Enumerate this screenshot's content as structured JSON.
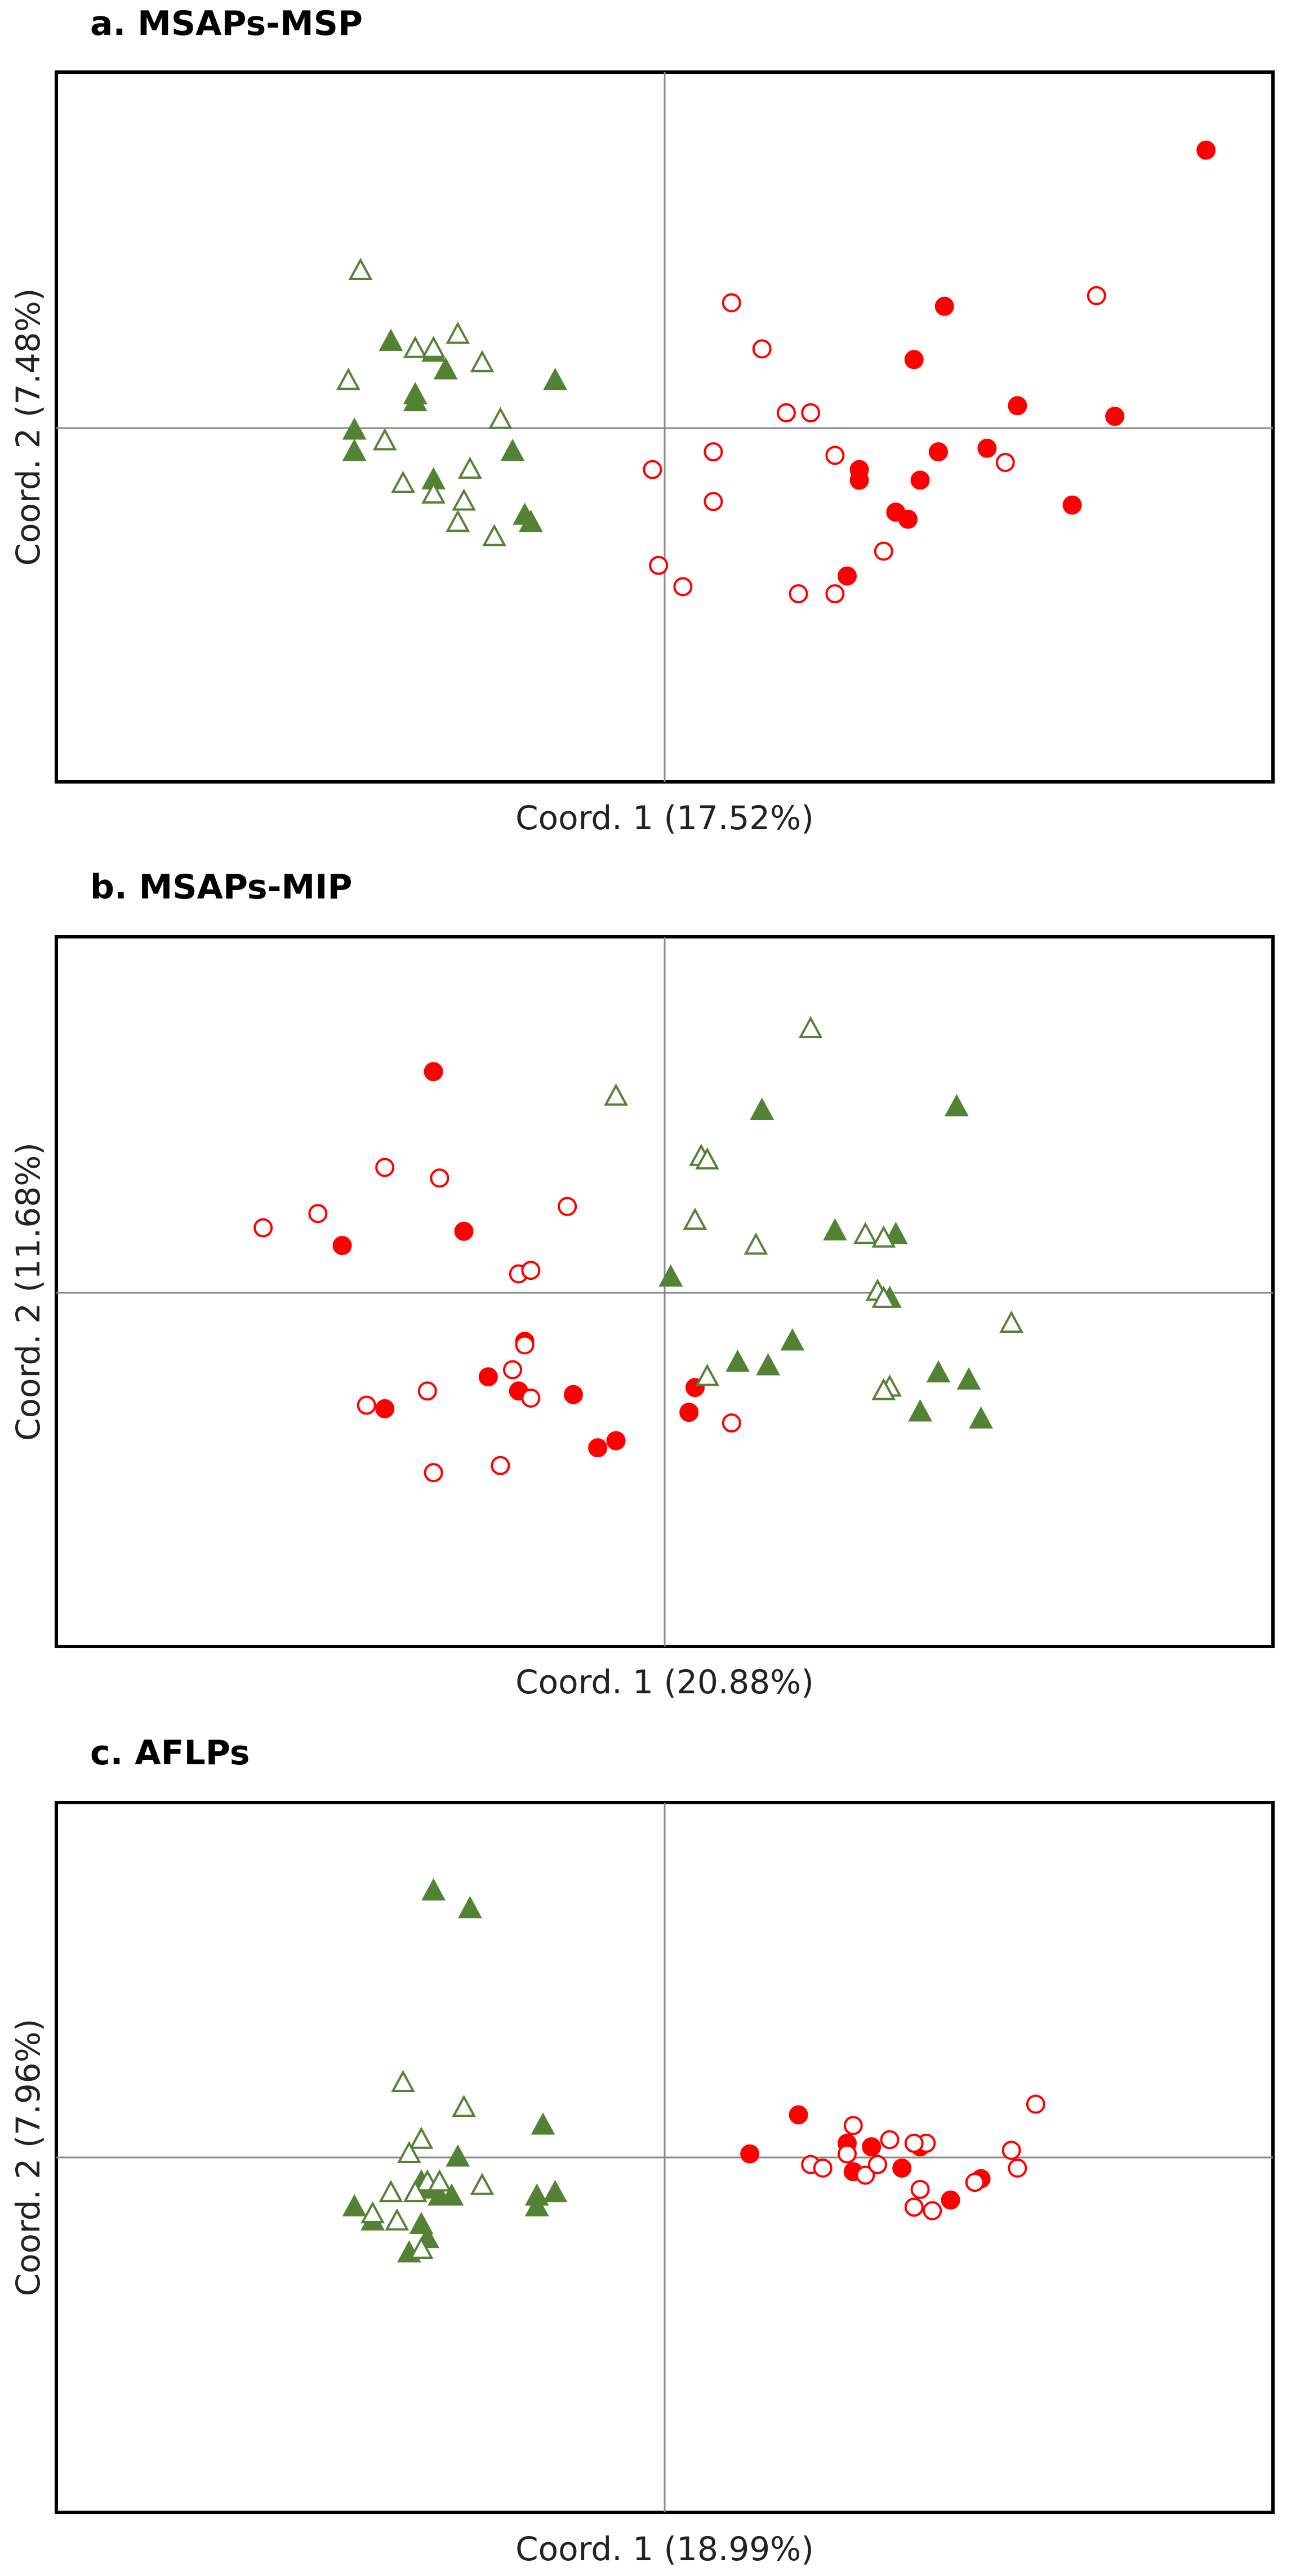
{
  "colors": {
    "group_red": "#ff0000",
    "group_green": "#548235",
    "frame": "#000000",
    "axis": "#8a8a8a"
  },
  "chart_data": [
    {
      "type": "scatter",
      "title": "a. MSAPs-MSP",
      "xlabel": "Coord. 1 (17.52%)",
      "ylabel": "Coord. 2 (7.48%)",
      "xlim": [
        -1.0,
        1.0
      ],
      "ylim": [
        -1.0,
        1.0
      ],
      "series": [
        {
          "name": "red-filled-circle",
          "marker": "circle",
          "filled": true,
          "color": "#ff0000",
          "points": [
            [
              0.89,
              0.78
            ],
            [
              0.46,
              0.34
            ],
            [
              0.41,
              0.19
            ],
            [
              0.58,
              0.06
            ],
            [
              0.53,
              -0.06
            ],
            [
              0.74,
              0.03
            ],
            [
              0.45,
              -0.07
            ],
            [
              0.32,
              -0.12
            ],
            [
              0.42,
              -0.15
            ],
            [
              0.32,
              -0.15
            ],
            [
              0.38,
              -0.24
            ],
            [
              0.67,
              -0.22
            ],
            [
              0.4,
              -0.26
            ],
            [
              0.3,
              -0.42
            ]
          ]
        },
        {
          "name": "red-open-circle",
          "marker": "circle",
          "filled": false,
          "color": "#ff0000",
          "points": [
            [
              0.71,
              0.37
            ],
            [
              0.11,
              0.35
            ],
            [
              0.16,
              0.22
            ],
            [
              0.24,
              0.04
            ],
            [
              0.2,
              0.04
            ],
            [
              0.08,
              -0.07
            ],
            [
              0.28,
              -0.08
            ],
            [
              0.56,
              -0.1
            ],
            [
              -0.02,
              -0.12
            ],
            [
              0.08,
              -0.21
            ],
            [
              0.36,
              -0.35
            ],
            [
              -0.01,
              -0.39
            ],
            [
              0.03,
              -0.45
            ],
            [
              0.28,
              -0.47
            ],
            [
              0.22,
              -0.47
            ]
          ]
        },
        {
          "name": "green-filled-triangle",
          "marker": "triangle",
          "filled": true,
          "color": "#548235",
          "points": [
            [
              -0.45,
              0.24
            ],
            [
              -0.38,
              0.21
            ],
            [
              -0.36,
              0.16
            ],
            [
              -0.18,
              0.13
            ],
            [
              -0.41,
              0.09
            ],
            [
              -0.41,
              0.07
            ],
            [
              -0.51,
              -0.01
            ],
            [
              -0.51,
              -0.07
            ],
            [
              -0.25,
              -0.07
            ],
            [
              -0.38,
              -0.15
            ],
            [
              -0.23,
              -0.25
            ],
            [
              -0.22,
              -0.27
            ]
          ]
        },
        {
          "name": "green-open-triangle",
          "marker": "triangle",
          "filled": false,
          "color": "#548235",
          "points": [
            [
              -0.5,
              0.44
            ],
            [
              -0.34,
              0.26
            ],
            [
              -0.41,
              0.22
            ],
            [
              -0.38,
              0.22
            ],
            [
              -0.3,
              0.18
            ],
            [
              -0.52,
              0.13
            ],
            [
              -0.27,
              0.02
            ],
            [
              -0.46,
              -0.04
            ],
            [
              -0.43,
              -0.16
            ],
            [
              -0.32,
              -0.12
            ],
            [
              -0.38,
              -0.19
            ],
            [
              -0.33,
              -0.21
            ],
            [
              -0.28,
              -0.31
            ],
            [
              -0.34,
              -0.27
            ]
          ]
        }
      ]
    },
    {
      "type": "scatter",
      "title": "b. MSAPs-MIP",
      "xlabel": "Coord. 1 (20.88%)",
      "ylabel": "Coord. 2 (11.68%)",
      "xlim": [
        -1.0,
        1.0
      ],
      "ylim": [
        -1.0,
        1.0
      ],
      "series": [
        {
          "name": "red-filled-circle",
          "marker": "circle",
          "filled": true,
          "color": "#ff0000",
          "points": [
            [
              -0.38,
              0.62
            ],
            [
              -0.33,
              0.17
            ],
            [
              -0.53,
              0.13
            ],
            [
              -0.46,
              -0.33
            ],
            [
              -0.29,
              -0.24
            ],
            [
              -0.23,
              -0.14
            ],
            [
              -0.24,
              -0.28
            ],
            [
              -0.15,
              -0.29
            ],
            [
              0.05,
              -0.27
            ],
            [
              0.04,
              -0.34
            ],
            [
              -0.08,
              -0.42
            ],
            [
              -0.11,
              -0.44
            ]
          ]
        },
        {
          "name": "red-open-circle",
          "marker": "circle",
          "filled": false,
          "color": "#ff0000",
          "points": [
            [
              -0.66,
              0.18
            ],
            [
              -0.57,
              0.22
            ],
            [
              -0.46,
              0.35
            ],
            [
              -0.37,
              0.32
            ],
            [
              -0.16,
              0.24
            ],
            [
              -0.23,
              -0.15
            ],
            [
              -0.49,
              -0.32
            ],
            [
              -0.39,
              -0.28
            ],
            [
              -0.25,
              -0.22
            ],
            [
              -0.22,
              -0.3
            ],
            [
              -0.24,
              0.05
            ],
            [
              -0.22,
              0.06
            ],
            [
              -0.38,
              -0.51
            ],
            [
              -0.27,
              -0.49
            ],
            [
              0.11,
              -0.37
            ]
          ]
        },
        {
          "name": "green-filled-triangle",
          "marker": "triangle",
          "filled": true,
          "color": "#548235",
          "points": [
            [
              0.48,
              0.52
            ],
            [
              0.16,
              0.51
            ],
            [
              0.28,
              0.17
            ],
            [
              0.38,
              0.16
            ],
            [
              0.01,
              0.04
            ],
            [
              0.37,
              -0.02
            ],
            [
              0.21,
              -0.14
            ],
            [
              0.12,
              -0.2
            ],
            [
              0.17,
              -0.21
            ],
            [
              0.45,
              -0.23
            ],
            [
              0.5,
              -0.25
            ],
            [
              0.42,
              -0.34
            ],
            [
              0.52,
              -0.36
            ]
          ]
        },
        {
          "name": "green-open-triangle",
          "marker": "triangle",
          "filled": false,
          "color": "#548235",
          "points": [
            [
              0.24,
              0.74
            ],
            [
              -0.08,
              0.55
            ],
            [
              0.06,
              0.38
            ],
            [
              0.07,
              0.37
            ],
            [
              0.05,
              0.2
            ],
            [
              0.15,
              0.13
            ],
            [
              0.33,
              0.16
            ],
            [
              0.36,
              0.15
            ],
            [
              0.35,
              0.0
            ],
            [
              0.36,
              -0.02
            ],
            [
              0.57,
              -0.09
            ],
            [
              0.07,
              -0.24
            ],
            [
              0.37,
              -0.27
            ],
            [
              0.36,
              -0.28
            ]
          ]
        }
      ]
    },
    {
      "type": "scatter",
      "title": "c. AFLPs",
      "xlabel": "Coord. 1 (18.99%)",
      "ylabel": "Coord. 2 (7.96%)",
      "xlim": [
        -1.0,
        1.0
      ],
      "ylim": [
        -1.0,
        1.0
      ],
      "series": [
        {
          "name": "red-filled-circle",
          "marker": "circle",
          "filled": true,
          "color": "#ff0000",
          "points": [
            [
              0.14,
              0.01
            ],
            [
              0.22,
              0.12
            ],
            [
              0.3,
              0.04
            ],
            [
              0.34,
              0.03
            ],
            [
              0.31,
              -0.04
            ],
            [
              0.35,
              -0.02
            ],
            [
              0.42,
              0.03
            ],
            [
              0.39,
              -0.03
            ],
            [
              0.47,
              -0.12
            ],
            [
              0.51,
              -0.07
            ],
            [
              0.52,
              -0.06
            ]
          ]
        },
        {
          "name": "red-open-circle",
          "marker": "circle",
          "filled": false,
          "color": "#ff0000",
          "points": [
            [
              0.31,
              0.09
            ],
            [
              0.37,
              0.05
            ],
            [
              0.43,
              0.04
            ],
            [
              0.24,
              -0.02
            ],
            [
              0.26,
              -0.03
            ],
            [
              0.3,
              0.01
            ],
            [
              0.33,
              -0.05
            ],
            [
              0.35,
              -0.02
            ],
            [
              0.41,
              0.04
            ],
            [
              0.42,
              -0.09
            ],
            [
              0.41,
              -0.14
            ],
            [
              0.44,
              -0.15
            ],
            [
              0.51,
              -0.07
            ],
            [
              0.57,
              0.02
            ],
            [
              0.58,
              -0.03
            ],
            [
              0.61,
              0.15
            ]
          ]
        },
        {
          "name": "green-filled-triangle",
          "marker": "triangle",
          "filled": true,
          "color": "#548235",
          "points": [
            [
              -0.38,
              0.75
            ],
            [
              -0.32,
              0.7
            ],
            [
              -0.2,
              0.09
            ],
            [
              -0.34,
              0.0
            ],
            [
              -0.4,
              -0.07
            ],
            [
              -0.39,
              -0.09
            ],
            [
              -0.37,
              -0.11
            ],
            [
              -0.35,
              -0.11
            ],
            [
              -0.21,
              -0.11
            ],
            [
              -0.18,
              -0.1
            ],
            [
              -0.21,
              -0.14
            ],
            [
              -0.51,
              -0.14
            ],
            [
              -0.48,
              -0.18
            ],
            [
              -0.4,
              -0.19
            ],
            [
              -0.39,
              -0.23
            ],
            [
              -0.42,
              -0.27
            ]
          ]
        },
        {
          "name": "green-open-triangle",
          "marker": "triangle",
          "filled": false,
          "color": "#548235",
          "points": [
            [
              -0.43,
              0.21
            ],
            [
              -0.33,
              0.14
            ],
            [
              -0.4,
              0.05
            ],
            [
              -0.42,
              0.01
            ],
            [
              -0.39,
              -0.07
            ],
            [
              -0.37,
              -0.07
            ],
            [
              -0.3,
              -0.08
            ],
            [
              -0.45,
              -0.1
            ],
            [
              -0.41,
              -0.1
            ],
            [
              -0.48,
              -0.16
            ],
            [
              -0.44,
              -0.18
            ],
            [
              -0.4,
              -0.26
            ]
          ]
        }
      ]
    }
  ]
}
